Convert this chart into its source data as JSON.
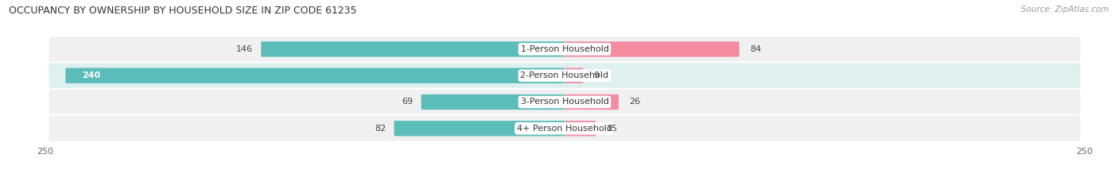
{
  "title": "OCCUPANCY BY OWNERSHIP BY HOUSEHOLD SIZE IN ZIP CODE 61235",
  "source": "Source: ZipAtlas.com",
  "categories": [
    "1-Person Household",
    "2-Person Household",
    "3-Person Household",
    "4+ Person Household"
  ],
  "owner_values": [
    146,
    240,
    69,
    82
  ],
  "renter_values": [
    84,
    9,
    26,
    15
  ],
  "owner_color": "#5bbcba",
  "renter_color": "#f48ca0",
  "row_bg_odd": "#f0f0f0",
  "row_bg_even": "#e0f3f3",
  "axis_max": 250,
  "figsize": [
    14.06,
    2.33
  ],
  "dpi": 100,
  "bar_height": 0.58,
  "title_fontsize": 9,
  "label_fontsize": 8,
  "cat_fontsize": 8
}
